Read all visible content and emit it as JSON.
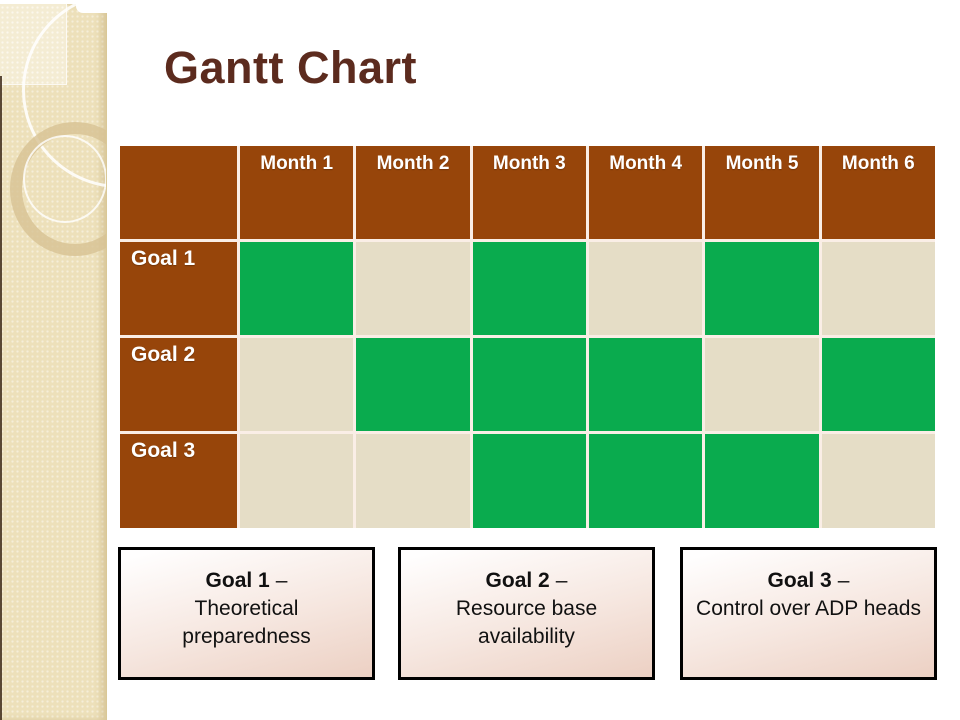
{
  "slide": {
    "title": "Gantt Chart"
  },
  "colors": {
    "brown": "#97450A",
    "title_brown": "#5C2B1E",
    "green": "#0AAB4E",
    "beige": "#E5DDC6",
    "gridline": "#FAEEE6",
    "box_rose": "#ECD0C3",
    "sidebar": "#EDE0BA",
    "sidebar_light": "#F4ECD3",
    "ring": "#D7C294"
  },
  "chart_data": {
    "type": "table",
    "style": "gantt",
    "title": "Gantt Chart",
    "columns": [
      "Month 1",
      "Month 2",
      "Month 3",
      "Month 4",
      "Month 5",
      "Month 6"
    ],
    "rows": [
      {
        "label": "Goal 1",
        "active": [
          1,
          0,
          1,
          0,
          1,
          0
        ],
        "active_months": [
          "Month 1",
          "Month 3",
          "Month 5"
        ]
      },
      {
        "label": "Goal 2",
        "active": [
          0,
          1,
          1,
          1,
          0,
          1
        ],
        "active_months": [
          "Month 2",
          "Month 3",
          "Month 4",
          "Month 6"
        ]
      },
      {
        "label": "Goal 3",
        "active": [
          0,
          0,
          1,
          1,
          1,
          0
        ],
        "active_months": [
          "Month 3",
          "Month 4",
          "Month 5"
        ]
      }
    ],
    "cell_states": {
      "active_color": "#0AAB4E",
      "inactive_color": "#E5DDC6"
    },
    "legend": [
      "Goal 1 – Theoretical preparedness",
      "Goal 2 – Resource base availability",
      "Goal 3 – Control over ADP heads"
    ]
  },
  "legend_boxes": [
    {
      "name": "Goal 1",
      "dash": "–",
      "description": "Theoretical preparedness"
    },
    {
      "name": "Goal 2",
      "dash": "–",
      "description": "Resource base availability"
    },
    {
      "name": "Goal 3",
      "dash": "–",
      "description": "Control over ADP heads"
    }
  ]
}
